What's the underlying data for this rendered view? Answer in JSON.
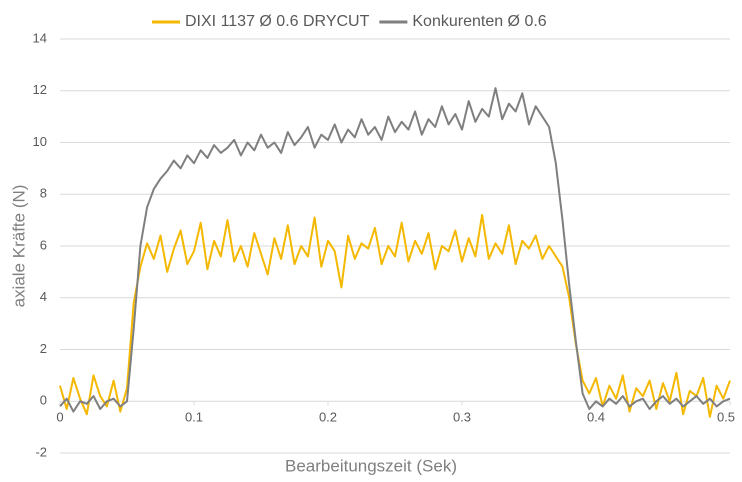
{
  "chart_data": {
    "type": "line",
    "xlabel": "Bearbeitungszeit (Sek)",
    "ylabel": "axiale Kräfte  (N)",
    "x": [
      0,
      0.005,
      0.01,
      0.015,
      0.02,
      0.025,
      0.03,
      0.035,
      0.04,
      0.045,
      0.05,
      0.055,
      0.06,
      0.065,
      0.07,
      0.075,
      0.08,
      0.085,
      0.09,
      0.095,
      0.1,
      0.105,
      0.11,
      0.115,
      0.12,
      0.125,
      0.13,
      0.135,
      0.14,
      0.145,
      0.15,
      0.155,
      0.16,
      0.165,
      0.17,
      0.175,
      0.18,
      0.185,
      0.19,
      0.195,
      0.2,
      0.205,
      0.21,
      0.215,
      0.22,
      0.225,
      0.23,
      0.235,
      0.24,
      0.245,
      0.25,
      0.255,
      0.26,
      0.265,
      0.27,
      0.275,
      0.28,
      0.285,
      0.29,
      0.295,
      0.3,
      0.305,
      0.31,
      0.315,
      0.32,
      0.325,
      0.33,
      0.335,
      0.34,
      0.345,
      0.35,
      0.355,
      0.36,
      0.365,
      0.37,
      0.375,
      0.38,
      0.385,
      0.39,
      0.395,
      0.4,
      0.405,
      0.41,
      0.415,
      0.42,
      0.425,
      0.43,
      0.435,
      0.44,
      0.445,
      0.45,
      0.455,
      0.46,
      0.465,
      0.47,
      0.475,
      0.48,
      0.485,
      0.49,
      0.495,
      0.5
    ],
    "series": [
      {
        "name": "DIXI 1137 Ø 0.6 DRYCUT",
        "color": "#f5b800",
        "values": [
          0.6,
          -0.3,
          0.9,
          0.1,
          -0.5,
          1.0,
          0.2,
          -0.2,
          0.8,
          -0.4,
          0.5,
          3.8,
          5.2,
          6.1,
          5.5,
          6.4,
          5.0,
          5.9,
          6.6,
          5.3,
          5.8,
          6.9,
          5.1,
          6.2,
          5.6,
          7.0,
          5.4,
          6.0,
          5.2,
          6.5,
          5.7,
          4.9,
          6.3,
          5.5,
          6.8,
          5.3,
          6.0,
          5.6,
          7.1,
          5.2,
          6.2,
          5.8,
          4.4,
          6.4,
          5.5,
          6.1,
          5.9,
          6.7,
          5.3,
          6.0,
          5.6,
          6.9,
          5.4,
          6.2,
          5.7,
          6.5,
          5.1,
          6.0,
          5.8,
          6.6,
          5.4,
          6.3,
          5.6,
          7.2,
          5.5,
          6.1,
          5.7,
          6.8,
          5.3,
          6.2,
          5.9,
          6.4,
          5.5,
          6.0,
          5.6,
          5.2,
          4.0,
          2.2,
          0.8,
          0.3,
          0.9,
          -0.2,
          0.6,
          0.1,
          1.0,
          -0.4,
          0.5,
          0.2,
          0.8,
          -0.3,
          0.7,
          0.0,
          1.1,
          -0.5,
          0.4,
          0.2,
          0.9,
          -0.6,
          0.6,
          0.1,
          0.8
        ]
      },
      {
        "name": "Konkurenten Ø 0.6",
        "color": "#7f7f7f",
        "values": [
          -0.2,
          0.1,
          -0.4,
          0.0,
          -0.1,
          0.2,
          -0.3,
          0.0,
          0.1,
          -0.2,
          0.0,
          2.8,
          6.0,
          7.5,
          8.2,
          8.6,
          8.9,
          9.3,
          9.0,
          9.5,
          9.2,
          9.7,
          9.4,
          9.9,
          9.6,
          9.8,
          10.1,
          9.5,
          10.0,
          9.7,
          10.3,
          9.8,
          10.0,
          9.6,
          10.4,
          9.9,
          10.2,
          10.6,
          9.8,
          10.3,
          10.1,
          10.7,
          10.0,
          10.5,
          10.2,
          10.9,
          10.3,
          10.6,
          10.1,
          11.0,
          10.4,
          10.8,
          10.5,
          11.2,
          10.3,
          10.9,
          10.6,
          11.4,
          10.7,
          11.1,
          10.5,
          11.6,
          10.8,
          11.3,
          11.0,
          12.1,
          10.9,
          11.5,
          11.2,
          11.9,
          10.7,
          11.4,
          11.0,
          10.6,
          9.2,
          7.0,
          4.5,
          2.3,
          0.3,
          -0.3,
          0.0,
          -0.2,
          0.1,
          -0.1,
          0.2,
          -0.2,
          0.0,
          0.1,
          -0.3,
          0.0,
          0.2,
          -0.1,
          0.1,
          -0.2,
          0.0,
          0.2,
          -0.1,
          0.1,
          -0.2,
          0.0,
          0.1
        ]
      }
    ],
    "xlim": [
      0,
      0.5
    ],
    "xticks": [
      0,
      0.1,
      0.2,
      0.3,
      0.4,
      0.5
    ],
    "ylim": [
      -2,
      14
    ],
    "yticks": [
      -2,
      0,
      2,
      4,
      6,
      8,
      10,
      12,
      14
    ],
    "grid": true,
    "legend": "top"
  }
}
